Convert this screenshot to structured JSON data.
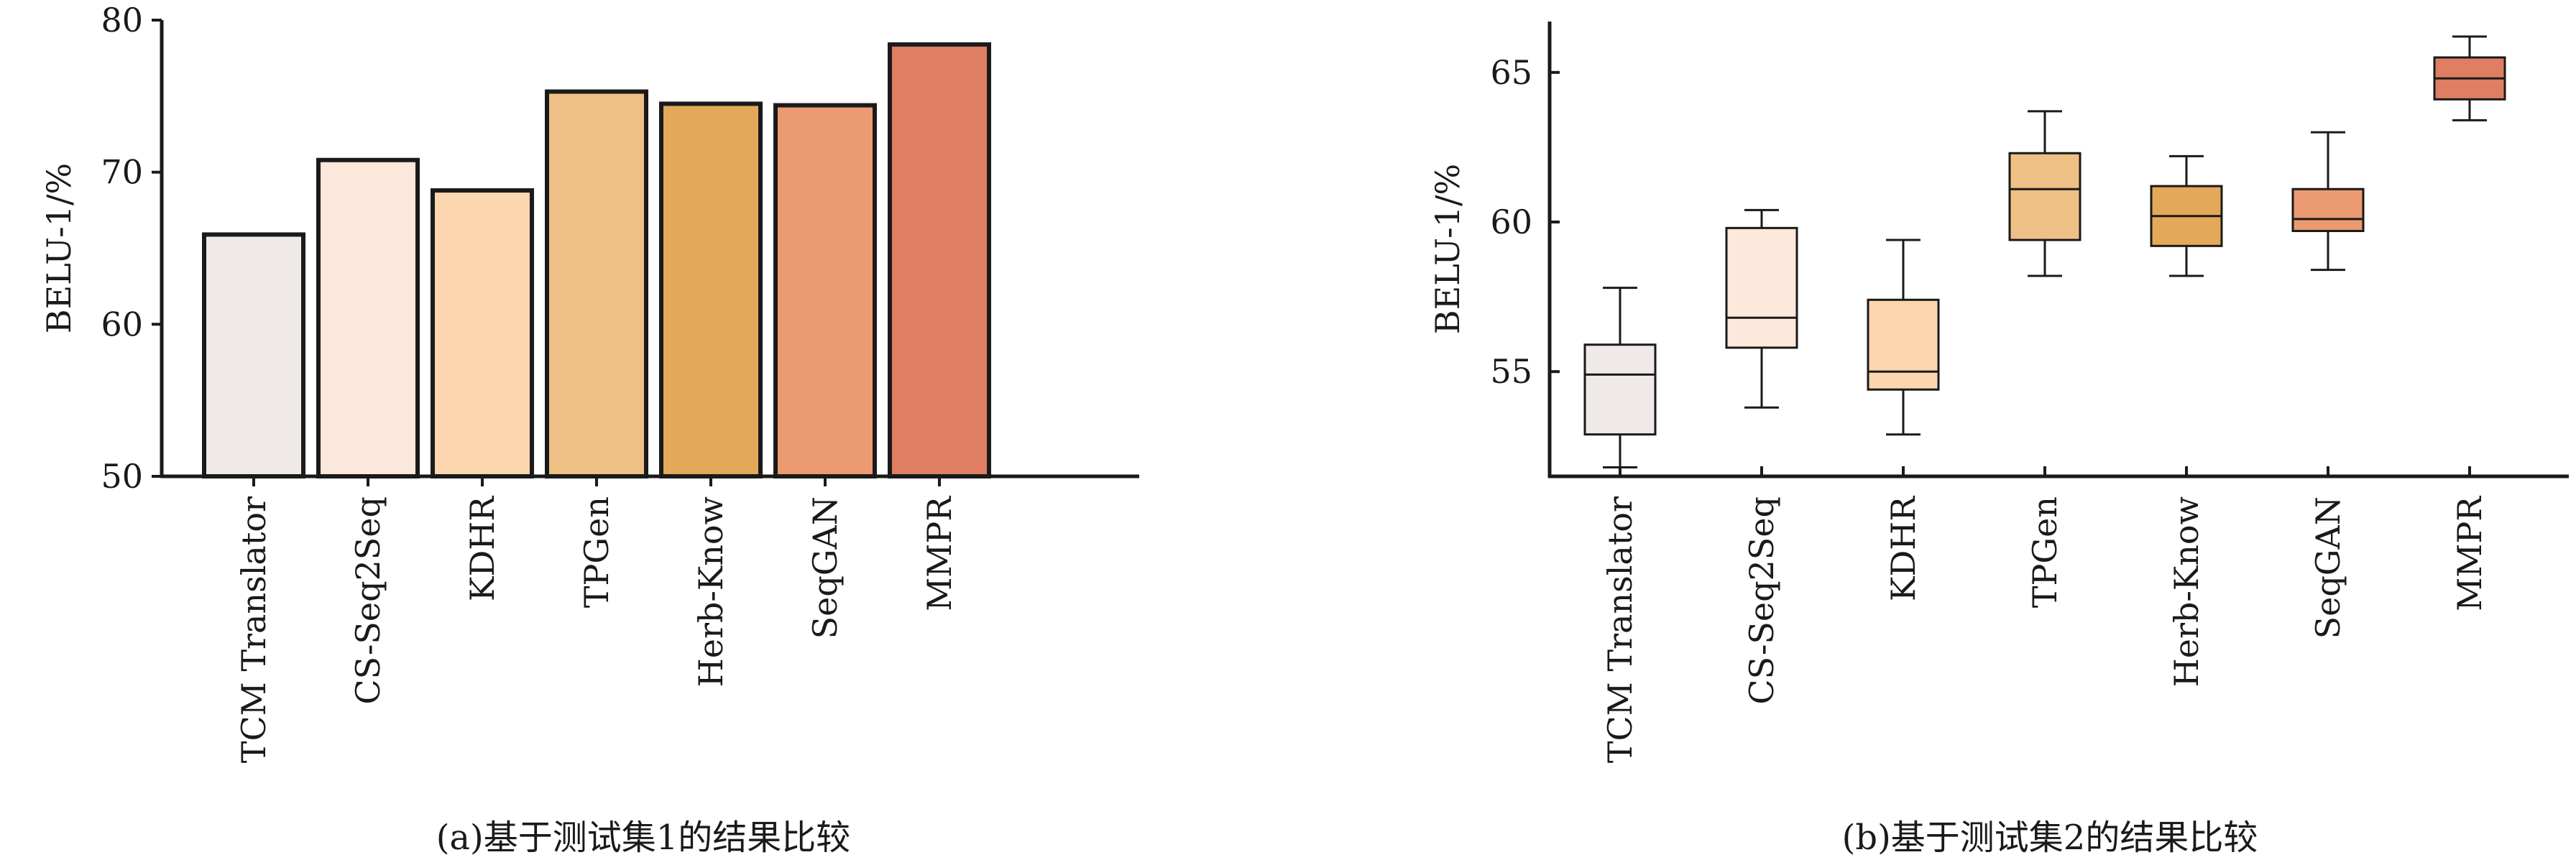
{
  "chart_data": [
    {
      "type": "bar",
      "caption": "(a)基于测试集1的结果比较",
      "ylabel": "BELU-1/%",
      "xlabel": "",
      "ylim": [
        50,
        80
      ],
      "yticks": [
        50,
        60,
        70,
        80
      ],
      "grid": false,
      "categories": [
        "TCM Translator",
        "CS-Seq2Seq",
        "KDHR",
        "TPGen",
        "Herb-Know",
        "SeqGAN",
        "MMPR"
      ],
      "values": [
        65.9,
        70.8,
        68.8,
        75.3,
        74.5,
        74.4,
        78.4
      ],
      "colors": [
        "#efe9e7",
        "#fde8dc",
        "#fcd6ae",
        "#eec085",
        "#e3a859",
        "#ec9a72",
        "#e07e64"
      ]
    },
    {
      "type": "box",
      "caption": "(b)基于测试集2的结果比较",
      "ylabel": "BELU-1/%",
      "xlabel": "",
      "ylim": [
        51.5,
        66.7
      ],
      "yticks": [
        55,
        60,
        65
      ],
      "grid": false,
      "categories": [
        "TCM Translator",
        "CS-Seq2Seq",
        "KDHR",
        "TPGen",
        "Herb-Know",
        "SeqGAN",
        "MMPR"
      ],
      "boxes": [
        {
          "min": 51.8,
          "q1": 52.9,
          "median": 54.9,
          "q3": 55.9,
          "max": 57.8
        },
        {
          "min": 53.8,
          "q1": 55.8,
          "median": 56.8,
          "q3": 59.8,
          "max": 60.4
        },
        {
          "min": 52.9,
          "q1": 54.4,
          "median": 55.0,
          "q3": 57.4,
          "max": 59.4
        },
        {
          "min": 58.2,
          "q1": 59.4,
          "median": 61.1,
          "q3": 62.3,
          "max": 63.7
        },
        {
          "min": 58.2,
          "q1": 59.2,
          "median": 60.2,
          "q3": 61.2,
          "max": 62.2
        },
        {
          "min": 58.4,
          "q1": 59.7,
          "median": 60.1,
          "q3": 61.1,
          "max": 63.0
        },
        {
          "min": 63.4,
          "q1": 64.1,
          "median": 64.8,
          "q3": 65.5,
          "max": 66.2
        }
      ],
      "colors": [
        "#efe9e7",
        "#fde8dc",
        "#fcd6ae",
        "#eec085",
        "#e3a859",
        "#ec9a72",
        "#e07e64"
      ]
    }
  ]
}
